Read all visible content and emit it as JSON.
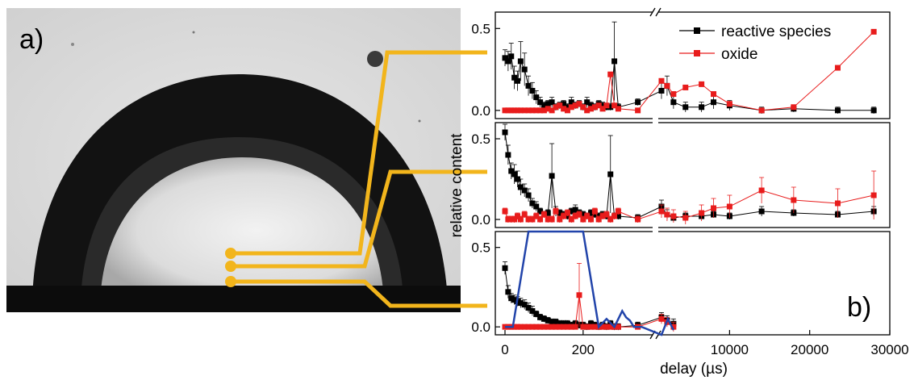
{
  "panel_a": {
    "label": "a)",
    "colors": {
      "connector": "#f2b51c",
      "drop": "#111111",
      "background": "#d8d8d8",
      "substrate": "#0c0c0c"
    }
  },
  "panel_b_label": "b)",
  "chart_data": {
    "type": "scatter",
    "xlabel": "delay (µs)",
    "ylabel": "relative content",
    "x_axis": {
      "broken": true,
      "segment_1": {
        "xlim": [
          0,
          380
        ],
        "ticks": [
          0,
          200
        ],
        "tick_labels": [
          "0",
          "200"
        ]
      },
      "segment_2": {
        "xlim": [
          1000,
          30000
        ],
        "ticks": [
          10000,
          20000,
          30000
        ],
        "tick_labels": [
          "10000",
          "20000",
          "30000"
        ]
      }
    },
    "ylim": [
      -0.05,
      0.6
    ],
    "yticks": [
      0.0,
      0.5
    ],
    "ytick_labels": [
      "0.0",
      "0.5"
    ],
    "legend": {
      "position": "top-right",
      "entries": [
        "reactive species",
        "oxide"
      ]
    },
    "colors": {
      "reactive_species": "#000000",
      "oxide": "#e81c1c",
      "overlay": "#2244aa"
    },
    "panels": [
      {
        "series": [
          {
            "name": "reactive species",
            "x": [
              0,
              8,
              16,
              24,
              32,
              40,
              50,
              60,
              70,
              80,
              90,
              100,
              110,
              120,
              130,
              140,
              150,
              160,
              170,
              180,
              190,
              200,
              210,
              220,
              230,
              240,
              250,
              260,
              270,
              280,
              290,
              340,
              1500,
              2200,
              3000,
              4500,
              6500,
              8000,
              10000,
              14000,
              18000,
              23500,
              28000
            ],
            "y": [
              0.32,
              0.3,
              0.33,
              0.2,
              0.18,
              0.3,
              0.25,
              0.15,
              0.12,
              0.08,
              0.05,
              0.03,
              0.04,
              0.05,
              0.02,
              0.03,
              0.04,
              0.02,
              0.05,
              0.03,
              0.04,
              0.02,
              0.05,
              0.03,
              0.02,
              0.04,
              0.03,
              0.02,
              0.02,
              0.3,
              0.02,
              0.05,
              0.12,
              0.15,
              0.05,
              0.02,
              0.02,
              0.05,
              0.03,
              0.0,
              0.01,
              0.0,
              0.0
            ],
            "yerr": [
              0.05,
              0.06,
              0.08,
              0.07,
              0.06,
              0.12,
              0.1,
              0.06,
              0.05,
              0.04,
              0.03,
              0.02,
              0.02,
              0.03,
              0.02,
              0.02,
              0.02,
              0.02,
              0.03,
              0.02,
              0.02,
              0.02,
              0.03,
              0.02,
              0.02,
              0.02,
              0.02,
              0.02,
              0.02,
              0.24,
              0.02,
              0.02,
              0.05,
              0.06,
              0.04,
              0.03,
              0.03,
              0.04,
              0.03,
              0.02,
              0.02,
              0.02,
              0.02
            ]
          },
          {
            "name": "oxide",
            "x": [
              0,
              8,
              16,
              24,
              32,
              40,
              50,
              60,
              70,
              80,
              90,
              100,
              110,
              120,
              130,
              140,
              150,
              160,
              170,
              180,
              190,
              200,
              210,
              220,
              230,
              240,
              250,
              260,
              270,
              280,
              290,
              340,
              1500,
              2200,
              3000,
              4500,
              6500,
              8000,
              10000,
              14000,
              18000,
              23500,
              28000
            ],
            "y": [
              0.0,
              0.0,
              0.0,
              0.0,
              0.0,
              0.0,
              0.0,
              0.0,
              0.0,
              0.0,
              0.0,
              0.0,
              0.01,
              0.0,
              0.02,
              0.03,
              0.01,
              0.0,
              0.02,
              0.03,
              0.04,
              0.02,
              0.0,
              0.01,
              0.02,
              0.03,
              0.01,
              0.03,
              0.22,
              0.03,
              0.01,
              0.0,
              0.18,
              0.15,
              0.1,
              0.14,
              0.16,
              0.1,
              0.04,
              0.0,
              0.02,
              0.26,
              0.48
            ]
          }
        ]
      },
      {
        "series": [
          {
            "name": "reactive species",
            "x": [
              0,
              8,
              16,
              24,
              32,
              40,
              50,
              60,
              70,
              80,
              90,
              100,
              110,
              120,
              130,
              140,
              150,
              160,
              170,
              180,
              190,
              200,
              210,
              220,
              230,
              240,
              250,
              260,
              270,
              280,
              290,
              340,
              1500,
              2200,
              3000,
              4500,
              6500,
              8000,
              10000,
              14000,
              18000,
              23500,
              28000
            ],
            "y": [
              0.54,
              0.4,
              0.3,
              0.28,
              0.25,
              0.2,
              0.18,
              0.15,
              0.1,
              0.08,
              0.05,
              0.03,
              0.04,
              0.27,
              0.05,
              0.04,
              0.03,
              0.02,
              0.05,
              0.06,
              0.04,
              0.03,
              0.02,
              0.04,
              0.03,
              0.02,
              0.03,
              0.02,
              0.28,
              0.02,
              0.02,
              0.01,
              0.08,
              0.03,
              0.01,
              0.02,
              0.02,
              0.03,
              0.02,
              0.05,
              0.04,
              0.03,
              0.05
            ],
            "yerr": [
              0.05,
              0.06,
              0.05,
              0.06,
              0.05,
              0.05,
              0.04,
              0.04,
              0.03,
              0.03,
              0.02,
              0.02,
              0.02,
              0.2,
              0.03,
              0.02,
              0.02,
              0.02,
              0.02,
              0.03,
              0.02,
              0.02,
              0.02,
              0.02,
              0.02,
              0.02,
              0.02,
              0.02,
              0.24,
              0.02,
              0.02,
              0.02,
              0.04,
              0.03,
              0.02,
              0.02,
              0.02,
              0.02,
              0.02,
              0.03,
              0.02,
              0.02,
              0.03
            ]
          },
          {
            "name": "oxide",
            "x": [
              0,
              8,
              16,
              24,
              32,
              40,
              50,
              60,
              70,
              80,
              90,
              100,
              110,
              120,
              130,
              140,
              150,
              160,
              170,
              180,
              190,
              200,
              210,
              220,
              230,
              240,
              250,
              260,
              270,
              280,
              290,
              340,
              1500,
              2200,
              3000,
              4500,
              6500,
              8000,
              10000,
              14000,
              18000,
              23500,
              28000
            ],
            "y": [
              0.05,
              0.0,
              0.0,
              0.0,
              0.02,
              0.0,
              0.03,
              0.0,
              0.0,
              0.02,
              0.0,
              0.03,
              0.0,
              0.0,
              0.05,
              0.0,
              0.02,
              0.04,
              0.0,
              0.02,
              0.03,
              0.0,
              0.02,
              0.0,
              0.05,
              0.0,
              0.02,
              0.03,
              0.0,
              0.02,
              0.05,
              0.0,
              0.05,
              0.03,
              0.02,
              0.01,
              0.04,
              0.07,
              0.08,
              0.18,
              0.12,
              0.1,
              0.15
            ],
            "yerr": [
              0.02,
              0.02,
              0.02,
              0.02,
              0.02,
              0.02,
              0.02,
              0.02,
              0.02,
              0.02,
              0.02,
              0.02,
              0.02,
              0.02,
              0.02,
              0.02,
              0.02,
              0.02,
              0.02,
              0.02,
              0.02,
              0.02,
              0.02,
              0.02,
              0.02,
              0.02,
              0.02,
              0.02,
              0.02,
              0.02,
              0.02,
              0.02,
              0.04,
              0.04,
              0.04,
              0.04,
              0.05,
              0.06,
              0.07,
              0.08,
              0.08,
              0.09,
              0.15
            ]
          }
        ]
      },
      {
        "series": [
          {
            "name": "reactive species",
            "x": [
              0,
              8,
              16,
              24,
              32,
              40,
              50,
              60,
              70,
              80,
              90,
              100,
              110,
              120,
              130,
              140,
              150,
              160,
              170,
              180,
              190,
              200,
              210,
              220,
              230,
              240,
              250,
              260,
              270,
              280,
              290,
              340,
              1500,
              2200,
              3000
            ],
            "y": [
              0.37,
              0.22,
              0.18,
              0.17,
              0.16,
              0.15,
              0.14,
              0.12,
              0.1,
              0.08,
              0.06,
              0.05,
              0.04,
              0.03,
              0.03,
              0.02,
              0.02,
              0.02,
              0.01,
              0.02,
              0.01,
              0.01,
              0.0,
              0.02,
              0.01,
              0.0,
              0.01,
              0.0,
              0.02,
              0.0,
              0.0,
              0.01,
              0.06,
              0.04,
              0.02
            ],
            "yerr": [
              0.04,
              0.04,
              0.03,
              0.03,
              0.03,
              0.03,
              0.03,
              0.03,
              0.03,
              0.02,
              0.02,
              0.02,
              0.02,
              0.02,
              0.02,
              0.02,
              0.02,
              0.02,
              0.02,
              0.02,
              0.02,
              0.02,
              0.02,
              0.02,
              0.02,
              0.02,
              0.02,
              0.02,
              0.02,
              0.02,
              0.02,
              0.02,
              0.03,
              0.03,
              0.03
            ]
          },
          {
            "name": "oxide",
            "x": [
              0,
              8,
              16,
              24,
              32,
              40,
              50,
              60,
              70,
              80,
              90,
              100,
              110,
              120,
              130,
              140,
              150,
              160,
              170,
              180,
              190,
              200,
              210,
              220,
              230,
              240,
              250,
              260,
              270,
              280,
              290,
              340,
              1500,
              2200,
              3000
            ],
            "y": [
              0.0,
              0.0,
              0.0,
              0.0,
              0.0,
              0.0,
              0.0,
              0.0,
              0.0,
              0.0,
              0.0,
              0.0,
              0.0,
              0.0,
              0.0,
              0.0,
              0.0,
              0.0,
              0.0,
              0.0,
              0.2,
              0.0,
              0.0,
              0.0,
              0.0,
              0.0,
              0.0,
              0.0,
              0.0,
              0.0,
              0.0,
              0.0,
              0.05,
              0.03,
              0.0
            ],
            "yerr": [
              0.01,
              0.01,
              0.01,
              0.01,
              0.01,
              0.01,
              0.01,
              0.01,
              0.01,
              0.01,
              0.01,
              0.01,
              0.01,
              0.01,
              0.01,
              0.01,
              0.01,
              0.01,
              0.01,
              0.01,
              0.2,
              0.01,
              0.01,
              0.01,
              0.01,
              0.01,
              0.01,
              0.01,
              0.01,
              0.01,
              0.01,
              0.01,
              0.03,
              0.03,
              0.03
            ]
          },
          {
            "name": "",
            "style": "line",
            "x": [
              0,
              20,
              60,
              200,
              240,
              260,
              280,
              300,
              310,
              320,
              330,
              350,
              1500,
              2300,
              3000
            ],
            "y": [
              0.0,
              0.0,
              0.6,
              0.6,
              0.0,
              0.05,
              0.0,
              0.1,
              0.06,
              0.04,
              0.0,
              0.0,
              -0.05,
              0.05,
              -0.02
            ]
          }
        ]
      }
    ]
  }
}
